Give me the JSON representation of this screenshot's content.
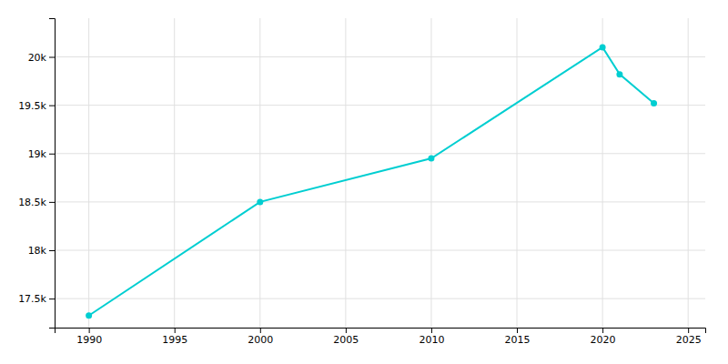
{
  "chart_data": {
    "type": "line",
    "x": [
      1990,
      2000,
      2010,
      2020,
      2021,
      2023
    ],
    "values": [
      17325,
      18500,
      18950,
      20100,
      19820,
      19520
    ],
    "color": "#00CED1",
    "marker": "circle",
    "xlim": [
      1988,
      2026
    ],
    "ylim": [
      17200,
      20400
    ],
    "xticks": [
      1990,
      1995,
      2000,
      2005,
      2010,
      2015,
      2020,
      2025
    ],
    "yticks": [
      {
        "value": 17500,
        "label": "17.5k"
      },
      {
        "value": 18000,
        "label": "18k"
      },
      {
        "value": 18500,
        "label": "18.5k"
      },
      {
        "value": 19000,
        "label": "19k"
      },
      {
        "value": 19500,
        "label": "19.5k"
      },
      {
        "value": 20000,
        "label": "20k"
      }
    ],
    "grid": true
  }
}
